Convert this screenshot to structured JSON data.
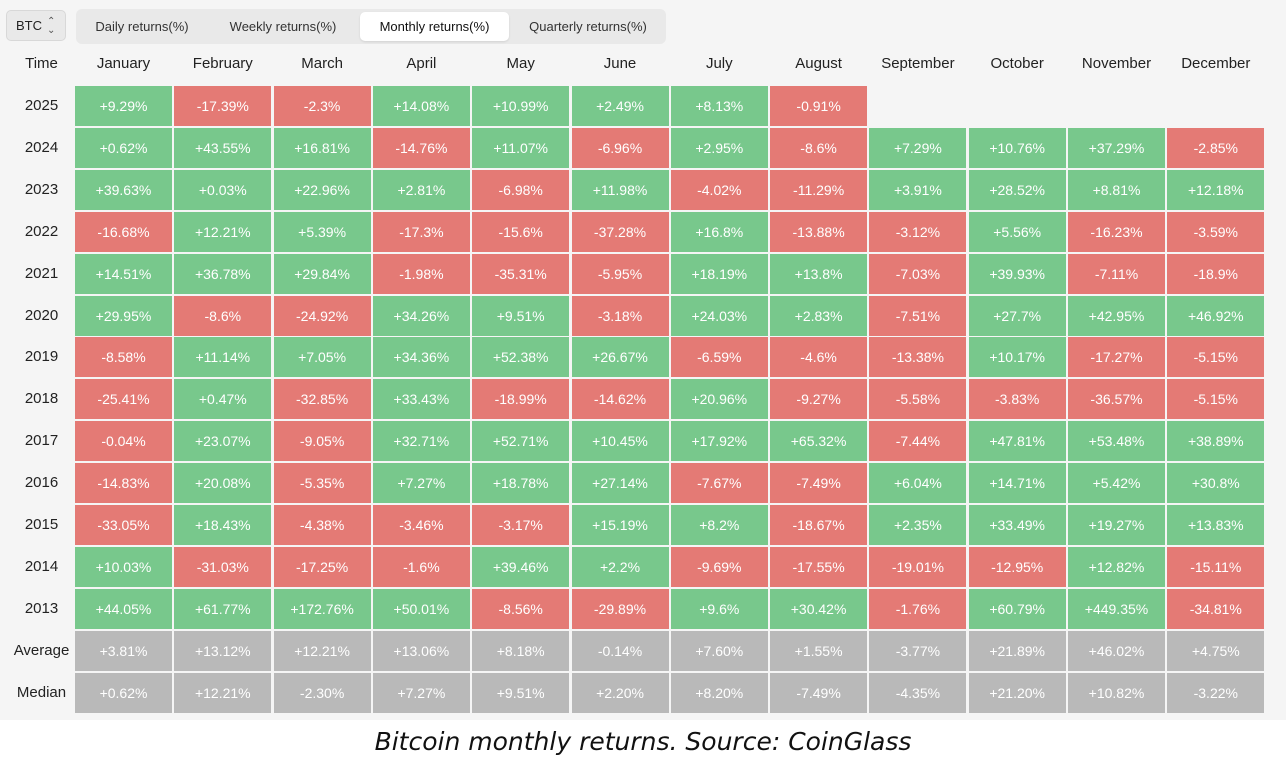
{
  "coin_select": {
    "value": "BTC"
  },
  "tabs": [
    {
      "label": "Daily returns(%)",
      "active": false
    },
    {
      "label": "Weekly returns(%)",
      "active": false
    },
    {
      "label": "Monthly returns(%)",
      "active": true
    },
    {
      "label": "Quarterly returns(%)",
      "active": false
    }
  ],
  "table": {
    "time_header": "Time",
    "months": [
      "January",
      "February",
      "March",
      "April",
      "May",
      "June",
      "July",
      "August",
      "September",
      "October",
      "November",
      "December"
    ],
    "rows": [
      {
        "label": "2025",
        "values": [
          "+9.29%",
          "-17.39%",
          "-2.3%",
          "+14.08%",
          "+10.99%",
          "+2.49%",
          "+8.13%",
          "-0.91%",
          "",
          "",
          "",
          ""
        ]
      },
      {
        "label": "2024",
        "values": [
          "+0.62%",
          "+43.55%",
          "+16.81%",
          "-14.76%",
          "+11.07%",
          "-6.96%",
          "+2.95%",
          "-8.6%",
          "+7.29%",
          "+10.76%",
          "+37.29%",
          "-2.85%"
        ]
      },
      {
        "label": "2023",
        "values": [
          "+39.63%",
          "+0.03%",
          "+22.96%",
          "+2.81%",
          "-6.98%",
          "+11.98%",
          "-4.02%",
          "-11.29%",
          "+3.91%",
          "+28.52%",
          "+8.81%",
          "+12.18%"
        ]
      },
      {
        "label": "2022",
        "values": [
          "-16.68%",
          "+12.21%",
          "+5.39%",
          "-17.3%",
          "-15.6%",
          "-37.28%",
          "+16.8%",
          "-13.88%",
          "-3.12%",
          "+5.56%",
          "-16.23%",
          "-3.59%"
        ]
      },
      {
        "label": "2021",
        "values": [
          "+14.51%",
          "+36.78%",
          "+29.84%",
          "-1.98%",
          "-35.31%",
          "-5.95%",
          "+18.19%",
          "+13.8%",
          "-7.03%",
          "+39.93%",
          "-7.11%",
          "-18.9%"
        ]
      },
      {
        "label": "2020",
        "values": [
          "+29.95%",
          "-8.6%",
          "-24.92%",
          "+34.26%",
          "+9.51%",
          "-3.18%",
          "+24.03%",
          "+2.83%",
          "-7.51%",
          "+27.7%",
          "+42.95%",
          "+46.92%"
        ]
      },
      {
        "label": "2019",
        "values": [
          "-8.58%",
          "+11.14%",
          "+7.05%",
          "+34.36%",
          "+52.38%",
          "+26.67%",
          "-6.59%",
          "-4.6%",
          "-13.38%",
          "+10.17%",
          "-17.27%",
          "-5.15%"
        ]
      },
      {
        "label": "2018",
        "values": [
          "-25.41%",
          "+0.47%",
          "-32.85%",
          "+33.43%",
          "-18.99%",
          "-14.62%",
          "+20.96%",
          "-9.27%",
          "-5.58%",
          "-3.83%",
          "-36.57%",
          "-5.15%"
        ]
      },
      {
        "label": "2017",
        "values": [
          "-0.04%",
          "+23.07%",
          "-9.05%",
          "+32.71%",
          "+52.71%",
          "+10.45%",
          "+17.92%",
          "+65.32%",
          "-7.44%",
          "+47.81%",
          "+53.48%",
          "+38.89%"
        ]
      },
      {
        "label": "2016",
        "values": [
          "-14.83%",
          "+20.08%",
          "-5.35%",
          "+7.27%",
          "+18.78%",
          "+27.14%",
          "-7.67%",
          "-7.49%",
          "+6.04%",
          "+14.71%",
          "+5.42%",
          "+30.8%"
        ]
      },
      {
        "label": "2015",
        "values": [
          "-33.05%",
          "+18.43%",
          "-4.38%",
          "-3.46%",
          "-3.17%",
          "+15.19%",
          "+8.2%",
          "-18.67%",
          "+2.35%",
          "+33.49%",
          "+19.27%",
          "+13.83%"
        ]
      },
      {
        "label": "2014",
        "values": [
          "+10.03%",
          "-31.03%",
          "-17.25%",
          "-1.6%",
          "+39.46%",
          "+2.2%",
          "-9.69%",
          "-17.55%",
          "-19.01%",
          "-12.95%",
          "+12.82%",
          "-15.11%"
        ]
      },
      {
        "label": "2013",
        "values": [
          "+44.05%",
          "+61.77%",
          "+172.76%",
          "+50.01%",
          "-8.56%",
          "-29.89%",
          "+9.6%",
          "+30.42%",
          "-1.76%",
          "+60.79%",
          "+449.35%",
          "-34.81%"
        ]
      }
    ],
    "summary": [
      {
        "label": "Average",
        "values": [
          "+3.81%",
          "+13.12%",
          "+12.21%",
          "+13.06%",
          "+8.18%",
          "-0.14%",
          "+7.60%",
          "+1.55%",
          "-3.77%",
          "+21.89%",
          "+46.02%",
          "+4.75%"
        ]
      },
      {
        "label": "Median",
        "values": [
          "+0.62%",
          "+12.21%",
          "-2.30%",
          "+7.27%",
          "+9.51%",
          "+2.20%",
          "+8.20%",
          "-7.49%",
          "-4.35%",
          "+21.20%",
          "+10.82%",
          "-3.22%"
        ]
      }
    ]
  },
  "colors": {
    "positive": "#78c88c",
    "negative": "#e47a75",
    "summary": "#b9b9b9"
  },
  "caption": "Bitcoin monthly returns. Source: CoinGlass"
}
